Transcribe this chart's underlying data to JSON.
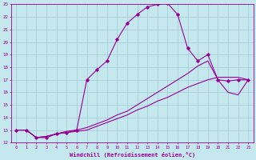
{
  "xlabel": "Windchill (Refroidissement éolien,°C)",
  "xlim": [
    -0.5,
    23.5
  ],
  "ylim": [
    12,
    23
  ],
  "xticks": [
    0,
    1,
    2,
    3,
    4,
    5,
    6,
    7,
    8,
    9,
    10,
    11,
    12,
    13,
    14,
    15,
    16,
    17,
    18,
    19,
    20,
    21,
    22,
    23
  ],
  "yticks": [
    12,
    13,
    14,
    15,
    16,
    17,
    18,
    19,
    20,
    21,
    22,
    23
  ],
  "bg_color": "#c5e8ef",
  "line_color": "#990099",
  "grid_color": "#a8cfd8",
  "lines": [
    {
      "x": [
        0,
        1,
        2,
        3,
        4,
        5,
        6,
        7,
        8,
        9,
        10,
        11,
        12,
        13,
        14,
        15,
        16,
        17,
        18,
        19,
        20,
        21,
        22,
        23
      ],
      "y": [
        13,
        13,
        12.4,
        12.4,
        12.7,
        12.8,
        13.0,
        17.0,
        17.8,
        18.5,
        20.2,
        21.5,
        22.2,
        22.8,
        23.0,
        23.1,
        22.2,
        19.5,
        18.5,
        19.0,
        17.0,
        16.9,
        17.0,
        17.0
      ],
      "marker": true
    },
    {
      "x": [
        0,
        1,
        2,
        3,
        4,
        5,
        6,
        7,
        8,
        9,
        10,
        11,
        12,
        13,
        14,
        15,
        16,
        17,
        18,
        19,
        20,
        21,
        22,
        23
      ],
      "y": [
        13.0,
        13.0,
        12.4,
        12.5,
        12.7,
        12.9,
        13.0,
        13.2,
        13.5,
        13.8,
        14.2,
        14.5,
        15.0,
        15.5,
        16.0,
        16.5,
        17.0,
        17.5,
        18.1,
        18.5,
        17.0,
        16.0,
        15.8,
        17.0
      ],
      "marker": false
    },
    {
      "x": [
        0,
        1,
        2,
        3,
        4,
        5,
        6,
        7,
        8,
        9,
        10,
        11,
        12,
        13,
        14,
        15,
        16,
        17,
        18,
        19,
        20,
        21,
        22,
        23
      ],
      "y": [
        13.0,
        13.0,
        12.4,
        12.5,
        12.7,
        12.8,
        12.9,
        13.0,
        13.3,
        13.6,
        13.9,
        14.2,
        14.6,
        14.9,
        15.3,
        15.6,
        16.0,
        16.4,
        16.7,
        17.0,
        17.2,
        17.2,
        17.2,
        17.0
      ],
      "marker": false
    }
  ]
}
